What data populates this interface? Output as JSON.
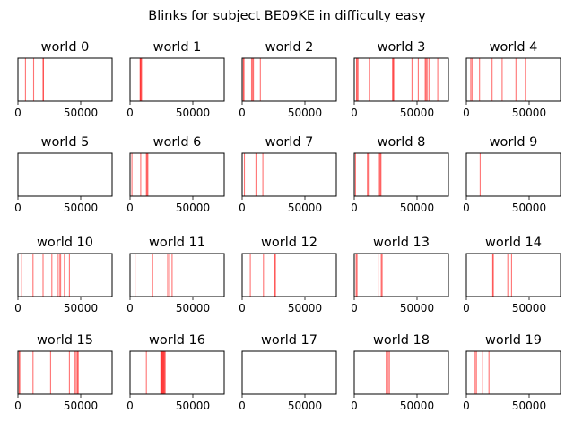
{
  "figure": {
    "title": "Blinks for subject BE09KE in difficulty easy"
  },
  "chart_data": {
    "type": "event-lines",
    "line_color": "#ff0000",
    "line_alpha": 0.55,
    "xlim": [
      0,
      75000
    ],
    "xticks": [
      0,
      50000
    ],
    "xtick_labels": [
      "0",
      "50000"
    ],
    "yticks": [],
    "panels": [
      {
        "title": "world 0",
        "events": [
          6000,
          12500,
          20000,
          20300
        ]
      },
      {
        "title": "world 1",
        "events": [
          8000,
          8300,
          8700,
          9200
        ]
      },
      {
        "title": "world 2",
        "events": [
          1000,
          1500,
          7500,
          8300,
          9000,
          14500
        ]
      },
      {
        "title": "world 3",
        "events": [
          1800,
          2300,
          3000,
          12000,
          30500,
          31000,
          31500,
          46000,
          51000,
          56500,
          57200,
          58000,
          59500,
          66500
        ]
      },
      {
        "title": "world 4",
        "events": [
          3500,
          4500,
          10500,
          20500,
          28500,
          39500,
          47000
        ]
      },
      {
        "title": "world 5",
        "events": []
      },
      {
        "title": "world 6",
        "events": [
          1500,
          8500,
          13000,
          13600,
          14200
        ]
      },
      {
        "title": "world 7",
        "events": [
          1800,
          11000,
          16500
        ]
      },
      {
        "title": "world 8",
        "events": [
          1000,
          10500,
          11200,
          20000,
          20700,
          21300
        ]
      },
      {
        "title": "world 9",
        "events": [
          11000
        ]
      },
      {
        "title": "world 10",
        "events": [
          3000,
          12000,
          20000,
          27000,
          31500,
          33000,
          34000,
          37000,
          41000
        ]
      },
      {
        "title": "world 11",
        "events": [
          4000,
          18000,
          30000,
          31500,
          33500
        ]
      },
      {
        "title": "world 12",
        "events": [
          6500,
          17000,
          26000,
          26500
        ]
      },
      {
        "title": "world 13",
        "events": [
          1500,
          2200,
          19000,
          21500,
          22200
        ]
      },
      {
        "title": "world 14",
        "events": [
          21000,
          21500,
          33000,
          36000
        ]
      },
      {
        "title": "world 15",
        "events": [
          1000,
          1500,
          12000,
          26000,
          41000,
          45500,
          46500,
          47500,
          48000
        ]
      },
      {
        "title": "world 16",
        "events": [
          13000,
          24500,
          25000,
          25400,
          25800,
          26200,
          26600,
          27000,
          27400,
          28000
        ]
      },
      {
        "title": "world 17",
        "events": []
      },
      {
        "title": "world 18",
        "events": [
          25500,
          27000,
          28000
        ]
      },
      {
        "title": "world 19",
        "events": [
          7000,
          8000,
          13000,
          18000
        ]
      }
    ]
  }
}
